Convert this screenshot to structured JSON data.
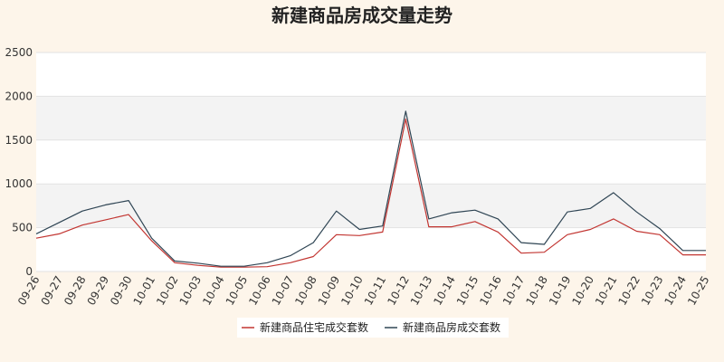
{
  "chart_data": {
    "type": "line",
    "title": "新建商品房成交量走势",
    "xlabel": "",
    "ylabel": "",
    "ylim": [
      0,
      2500
    ],
    "yticks": [
      0,
      500,
      1000,
      1500,
      2000,
      2500
    ],
    "grid": true,
    "legend_position": "bottom",
    "categories": [
      "09-26",
      "09-27",
      "09-28",
      "09-29",
      "09-30",
      "10-01",
      "10-02",
      "10-03",
      "10-04",
      "10-05",
      "10-06",
      "10-07",
      "10-08",
      "10-09",
      "10-10",
      "10-11",
      "10-12",
      "10-13",
      "10-14",
      "10-15",
      "10-16",
      "10-17",
      "10-18",
      "10-19",
      "10-20",
      "10-21",
      "10-22",
      "10-23",
      "10-24",
      "10-25"
    ],
    "series": [
      {
        "name": "新建商品住宅成交套数",
        "color": "#c23531",
        "values": [
          380,
          430,
          530,
          590,
          650,
          350,
          100,
          70,
          50,
          50,
          55,
          100,
          170,
          420,
          410,
          450,
          1740,
          510,
          510,
          570,
          450,
          210,
          220,
          420,
          480,
          600,
          460,
          420,
          190,
          190
        ]
      },
      {
        "name": "新建商品房成交套数",
        "color": "#2f4554",
        "values": [
          430,
          560,
          690,
          760,
          810,
          380,
          120,
          95,
          60,
          60,
          100,
          180,
          330,
          690,
          480,
          520,
          1830,
          600,
          670,
          700,
          600,
          330,
          310,
          680,
          720,
          900,
          680,
          490,
          240,
          240
        ]
      }
    ]
  }
}
